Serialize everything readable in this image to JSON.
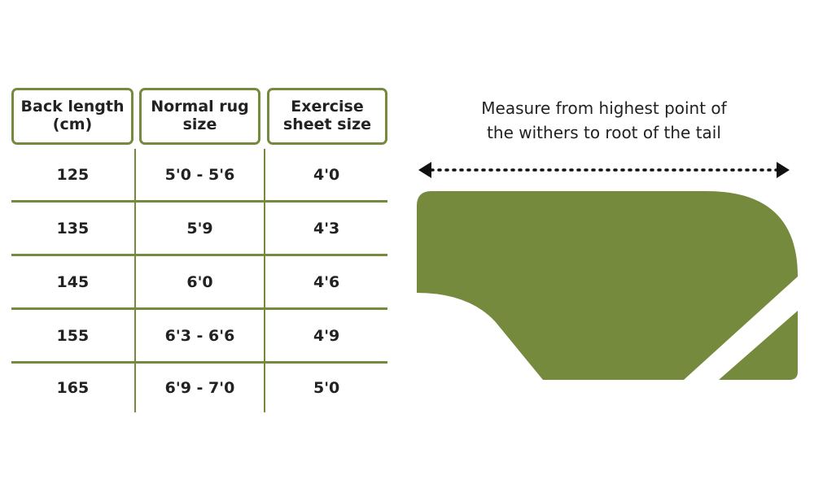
{
  "table": {
    "headers": [
      "Back length\n(cm)",
      "Normal rug\nsize",
      "Exercise\nsheet size"
    ],
    "rows": [
      [
        "125",
        "5'0 - 5'6",
        "4'0"
      ],
      [
        "135",
        "5'9",
        "4'3"
      ],
      [
        "145",
        "6'0",
        "4'6"
      ],
      [
        "155",
        "6'3 - 6'6",
        "4'9"
      ],
      [
        "165",
        "6'9 - 7'0",
        "5'0"
      ]
    ]
  },
  "diagram": {
    "caption_line1": "Measure from highest point of",
    "caption_line2": "the withers to root of the tail",
    "fill_color": "#758a3c",
    "arrow_color": "#111111",
    "icon": "horse-rug-shape"
  }
}
